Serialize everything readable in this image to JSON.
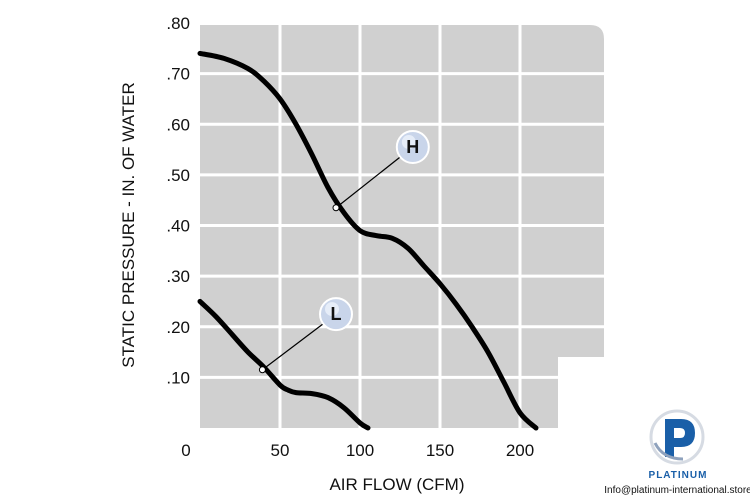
{
  "chart_data": {
    "type": "line",
    "xlabel": "AIR FLOW (CFM)",
    "ylabel": "STATIC PRESSURE - IN. OF WATER",
    "xlim": [
      0,
      250
    ],
    "ylim": [
      0,
      0.8
    ],
    "x_ticks": [
      {
        "value": 0,
        "label": "0"
      },
      {
        "value": 50,
        "label": "50"
      },
      {
        "value": 100,
        "label": "100"
      },
      {
        "value": 150,
        "label": "150"
      },
      {
        "value": 200,
        "label": "200"
      }
    ],
    "y_ticks": [
      {
        "value": 0.1,
        "label": ".10"
      },
      {
        "value": 0.2,
        "label": ".20"
      },
      {
        "value": 0.3,
        "label": ".30"
      },
      {
        "value": 0.4,
        "label": ".40"
      },
      {
        "value": 0.5,
        "label": ".50"
      },
      {
        "value": 0.6,
        "label": ".60"
      },
      {
        "value": 0.7,
        "label": ".70"
      },
      {
        "value": 0.8,
        "label": ".80"
      }
    ],
    "grid": true,
    "series": [
      {
        "name": "H",
        "x": [
          0,
          15,
          30,
          40,
          50,
          60,
          70,
          80,
          90,
          100,
          110,
          120,
          130,
          140,
          150,
          160,
          170,
          180,
          190,
          200,
          210
        ],
        "y": [
          0.74,
          0.73,
          0.71,
          0.685,
          0.65,
          0.6,
          0.54,
          0.475,
          0.425,
          0.39,
          0.38,
          0.375,
          0.355,
          0.32,
          0.285,
          0.245,
          0.2,
          0.15,
          0.09,
          0.03,
          0.0
        ],
        "marker_at": {
          "x": 85,
          "y": 0.435
        },
        "label_at": {
          "x": 133,
          "y": 0.555
        }
      },
      {
        "name": "L",
        "x": [
          0,
          10,
          20,
          30,
          40,
          50,
          55,
          60,
          70,
          80,
          90,
          100,
          105
        ],
        "y": [
          0.25,
          0.22,
          0.185,
          0.15,
          0.12,
          0.085,
          0.075,
          0.07,
          0.068,
          0.06,
          0.04,
          0.01,
          0.0
        ],
        "marker_at": {
          "x": 39,
          "y": 0.115
        },
        "label_at": {
          "x": 85,
          "y": 0.225
        }
      }
    ]
  },
  "brand": {
    "name": "PLATINUM",
    "email": "Info@platinum-international.store",
    "color": "#1a5fa8"
  }
}
